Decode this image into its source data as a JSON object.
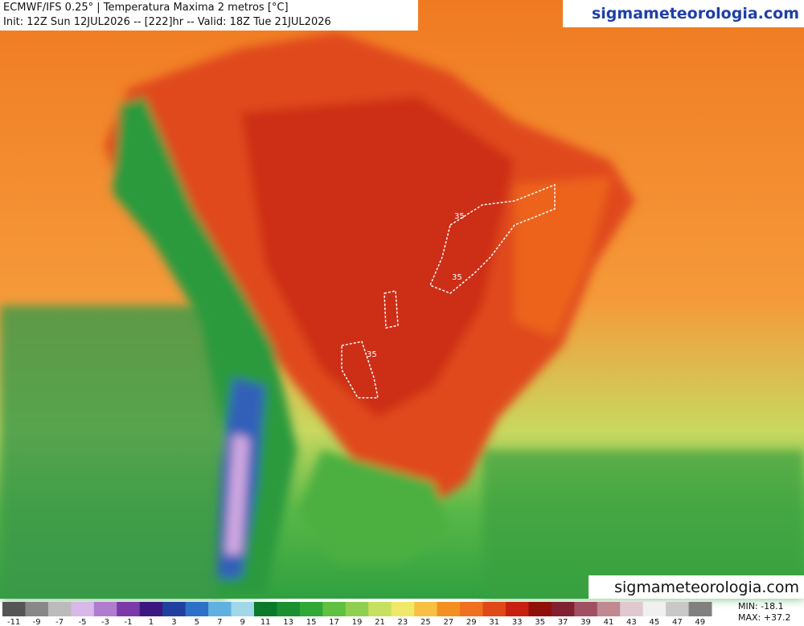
{
  "header": {
    "title": "ECMWF/IFS 0.25° | Temperatura Maxima 2 metros [°C]",
    "subtitle": "Init: 12Z Sun 12JUL2026 -- [222]hr -- Valid: 18Z Tue 21JUL2026",
    "watermark_top": "sigmameteorologia.com",
    "watermark_bottom": "sigmameteorologia.com"
  },
  "map": {
    "contour_labels": [
      "35",
      "35",
      "35"
    ]
  },
  "colorbar": {
    "ticks": [
      -11,
      -9,
      -7,
      -5,
      -3,
      -1,
      1,
      3,
      5,
      7,
      9,
      11,
      13,
      15,
      17,
      19,
      21,
      23,
      25,
      27,
      29,
      31,
      33,
      35,
      37,
      39,
      41,
      43,
      45,
      47,
      49
    ],
    "colors": [
      "#555555",
      "#888888",
      "#bbbbbb",
      "#d8b8e8",
      "#b07cd0",
      "#7a3aa8",
      "#3a1880",
      "#2040a0",
      "#2c70c8",
      "#60b0e0",
      "#a0d8e8",
      "#0a7a2a",
      "#1a9030",
      "#30a838",
      "#60c040",
      "#90d050",
      "#c8e060",
      "#f0e868",
      "#f8c040",
      "#f49020",
      "#f07020",
      "#e04818",
      "#c82010",
      "#901008",
      "#802030",
      "#a05060",
      "#c08890",
      "#e0c8d0",
      "#f0f0f0",
      "#c8c8c8",
      "#808080"
    ]
  },
  "stats": {
    "min": "MIN: -18.1",
    "max": "MAX: +37.2"
  }
}
